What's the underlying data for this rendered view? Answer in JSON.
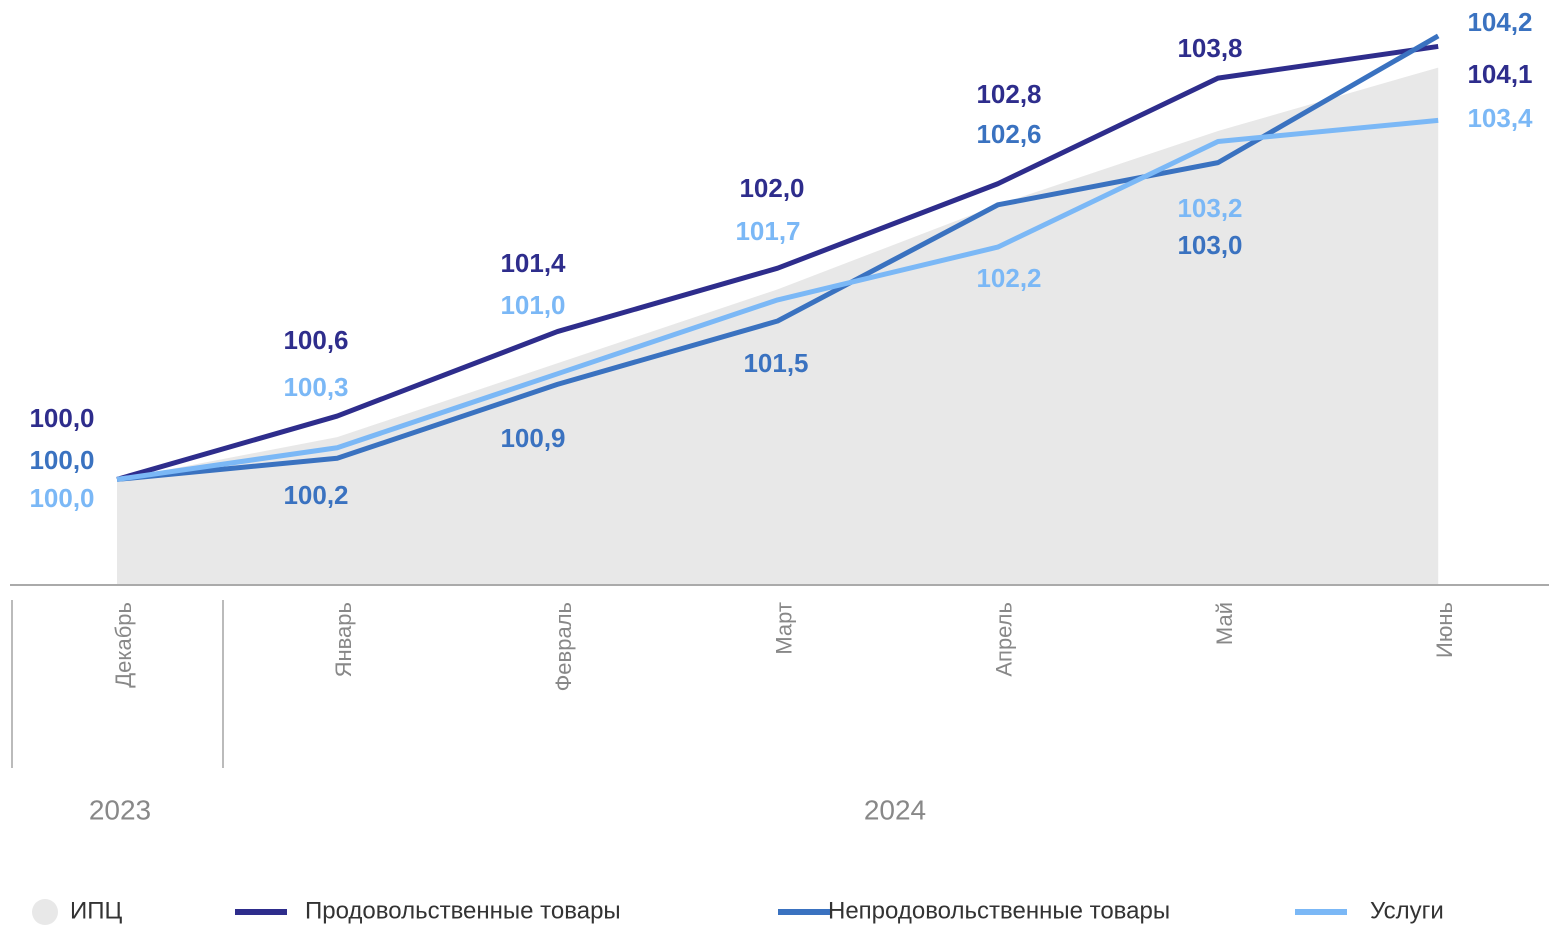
{
  "chart_data": {
    "type": "line",
    "categories": [
      "Декабрь",
      "Январь",
      "Февраль",
      "Март",
      "Апрель",
      "Май",
      "Июнь"
    ],
    "groups": [
      "2023",
      "2024"
    ],
    "ylim": [
      99.0,
      104.54
    ],
    "series": [
      {
        "name": "ИПЦ",
        "type": "area",
        "color": "#e8e8e8",
        "values": [
          100.0,
          100.4,
          101.1,
          101.8,
          102.6,
          103.3,
          103.9
        ]
      },
      {
        "name": "Продовольственные товары",
        "color": "#2e2d8c",
        "values": [
          100.0,
          100.6,
          101.4,
          102.0,
          102.8,
          103.8,
          104.1
        ],
        "value_labels": [
          "100,0",
          "100,6",
          "101,4",
          "102,0",
          "102,8",
          "103,8",
          "104,1"
        ]
      },
      {
        "name": "Непродовольственные товары",
        "color": "#3a72c0",
        "values": [
          100.0,
          100.2,
          100.9,
          101.5,
          102.6,
          103.0,
          104.2
        ],
        "value_labels": [
          "100,0",
          "100,2",
          "100,9",
          "101,5",
          "102,6",
          "103,0",
          "104,2"
        ]
      },
      {
        "name": "Услуги",
        "color": "#7bb8f6",
        "values": [
          100.0,
          100.3,
          101.0,
          101.7,
          102.2,
          103.2,
          103.4
        ],
        "value_labels": [
          "100,0",
          "100,3",
          "101,0",
          "101,7",
          "102,2",
          "103,2",
          "103,4"
        ]
      }
    ]
  }
}
